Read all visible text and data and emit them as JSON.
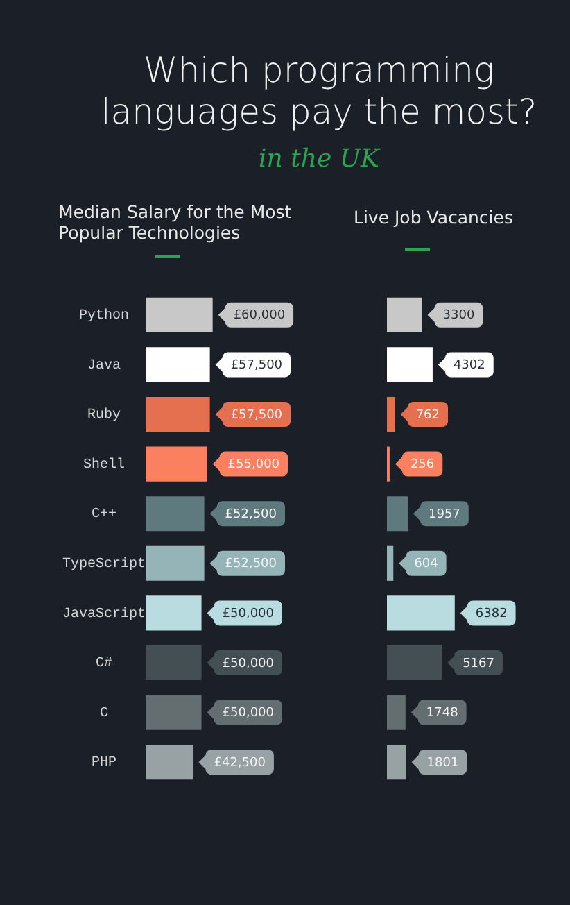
{
  "chart_data": [
    {
      "type": "other",
      "title": "Which programming languages pay the most?",
      "subtitle": "in the UK"
    },
    {
      "type": "bar",
      "orientation": "horizontal",
      "title": "Median Salary for the Most Popular Technologies",
      "categories": [
        "Python",
        "Java",
        "Ruby",
        "Shell",
        "C++",
        "TypeScript",
        "JavaScript",
        "C#",
        "C",
        "PHP"
      ],
      "values": [
        60000,
        57500,
        57500,
        55000,
        52500,
        52500,
        50000,
        50000,
        50000,
        42500
      ],
      "value_labels": [
        "£60,000",
        "£57,500",
        "£57,500",
        "£55,000",
        "£52,500",
        "£52,500",
        "£50,000",
        "£50,000",
        "£50,000",
        "£42,500"
      ],
      "colors": [
        "#c8c8c8",
        "#ffffff",
        "#e5704f",
        "#fa8060",
        "#5f7a7e",
        "#95b4b8",
        "#b8dce0",
        "#444f54",
        "#646e70",
        "#98a2a5"
      ],
      "tick_labels": "y"
    },
    {
      "type": "bar",
      "orientation": "horizontal",
      "title": "Live Job Vacancies",
      "categories": [
        null,
        null,
        null,
        null,
        null,
        null,
        null,
        null,
        null,
        null
      ],
      "values": [
        3300,
        4302,
        762,
        256,
        1957,
        604,
        6382,
        5167,
        1748,
        1801
      ],
      "data_labels": true,
      "colors": [
        "#c8c8c8",
        "#ffffff",
        "#e5704f",
        "#fa8060",
        "#5f7a7e",
        "#95b4b8",
        "#b8dce0",
        "#444f54",
        "#646e70",
        "#98a2a5"
      ],
      "tick_labels": false
    }
  ]
}
